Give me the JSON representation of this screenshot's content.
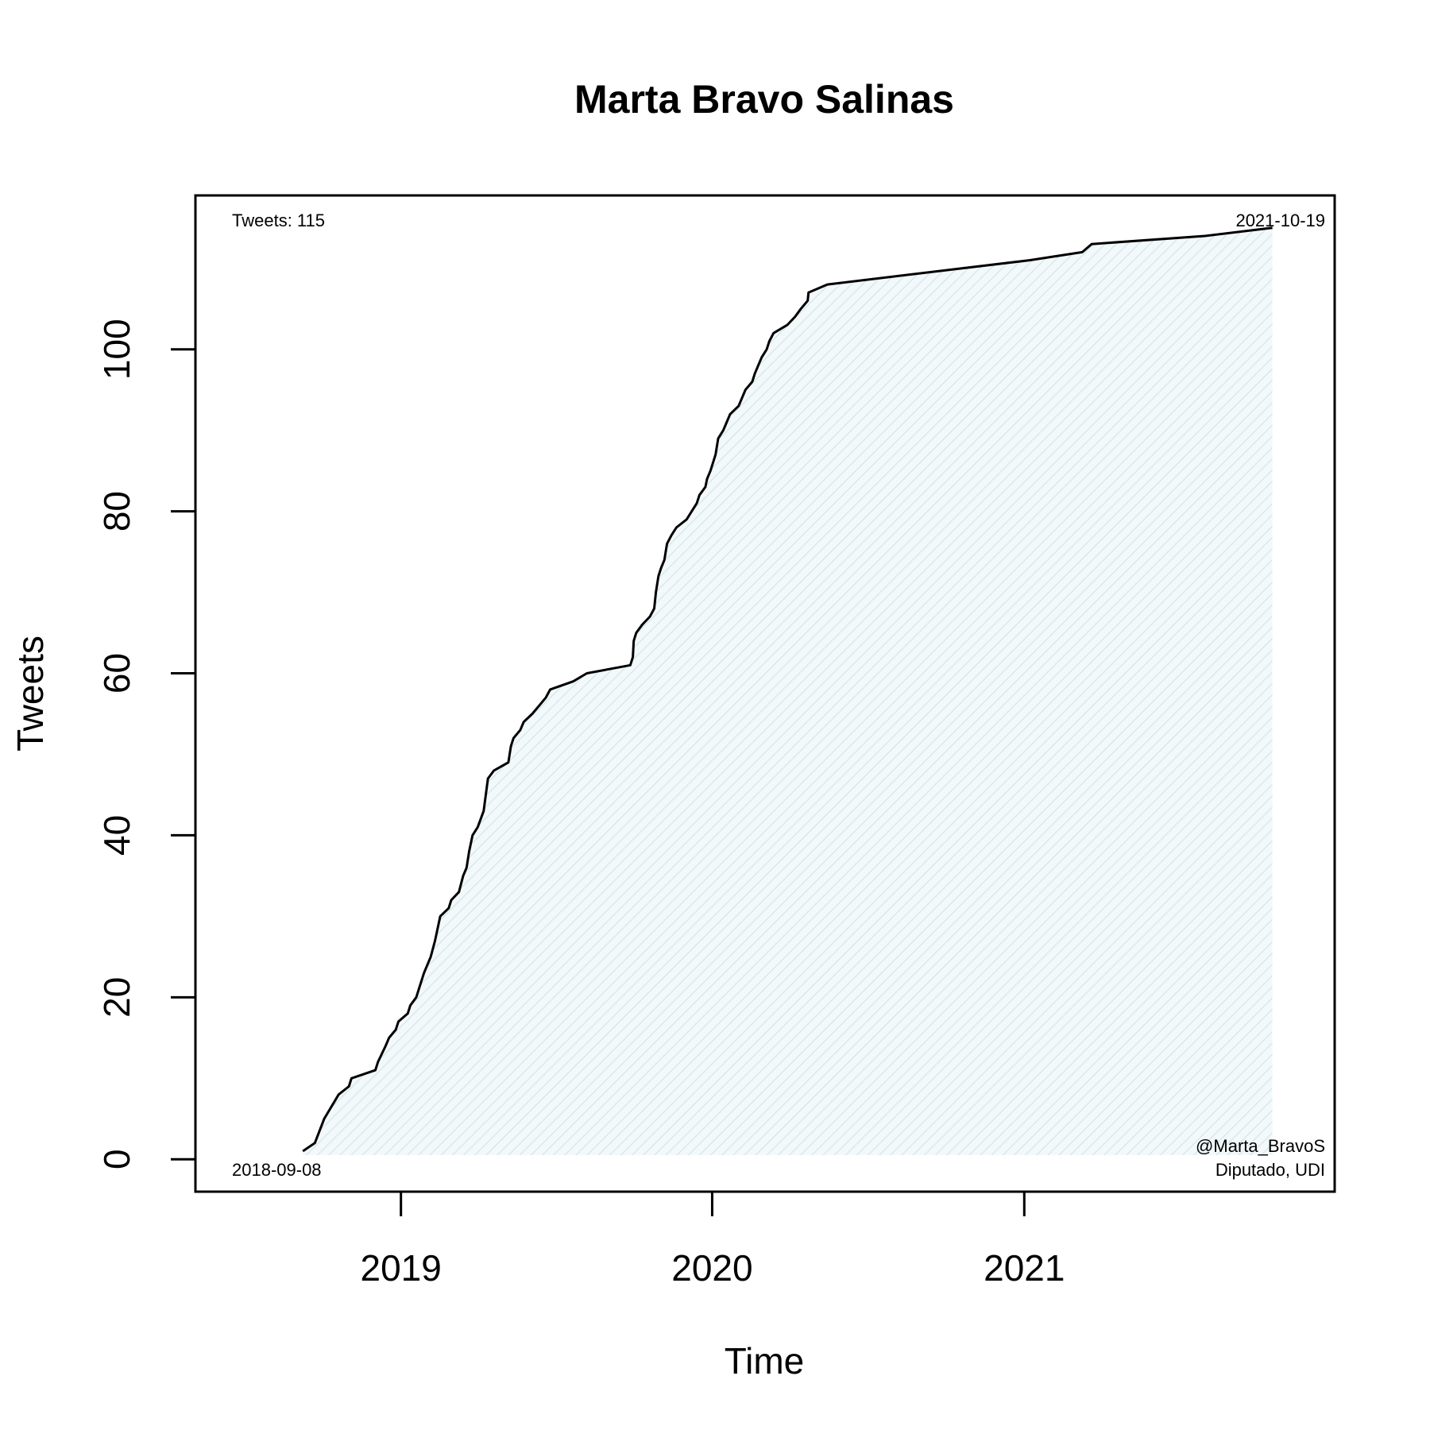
{
  "chart_data": {
    "type": "area",
    "title": "Marta Bravo Salinas",
    "xlabel": "Time",
    "ylabel": "Tweets",
    "xlim": [
      "2018-05-05",
      "2021-12-31"
    ],
    "ylim": [
      -4,
      119
    ],
    "x_ticks": [
      {
        "date": "2019-01-01",
        "label": "2019"
      },
      {
        "date": "2020-01-01",
        "label": "2020"
      },
      {
        "date": "2021-01-01",
        "label": "2021"
      }
    ],
    "y_ticks": [
      0,
      20,
      40,
      60,
      80,
      100
    ],
    "grid": false,
    "fill_color": "#e3eff2",
    "line_color": "#000000",
    "annotations": {
      "tweet_count": "Tweets: 115",
      "start_date": "2018-09-08",
      "end_date": "2021-10-19",
      "handle": "@Marta_BravoS",
      "affiliation": "Diputado, UDI"
    },
    "series": [
      {
        "points": [
          [
            "2018-09-08",
            1
          ],
          [
            "2018-09-22",
            2
          ],
          [
            "2018-10-03",
            5
          ],
          [
            "2018-10-20",
            8
          ],
          [
            "2018-11-01",
            9
          ],
          [
            "2018-11-04",
            10
          ],
          [
            "2018-12-02",
            11
          ],
          [
            "2018-12-05",
            12
          ],
          [
            "2018-12-14",
            14
          ],
          [
            "2018-12-18",
            15
          ],
          [
            "2018-12-26",
            16
          ],
          [
            "2018-12-29",
            17
          ],
          [
            "2019-01-09",
            18
          ],
          [
            "2019-01-12",
            19
          ],
          [
            "2019-01-19",
            20
          ],
          [
            "2019-01-22",
            21
          ],
          [
            "2019-01-28",
            23
          ],
          [
            "2019-02-05",
            25
          ],
          [
            "2019-02-10",
            27
          ],
          [
            "2019-02-16",
            30
          ],
          [
            "2019-02-26",
            31
          ],
          [
            "2019-03-01",
            32
          ],
          [
            "2019-03-10",
            33
          ],
          [
            "2019-03-15",
            35
          ],
          [
            "2019-03-19",
            36
          ],
          [
            "2019-03-22",
            38
          ],
          [
            "2019-03-26",
            40
          ],
          [
            "2019-04-01",
            41
          ],
          [
            "2019-04-08",
            43
          ],
          [
            "2019-04-13",
            47
          ],
          [
            "2019-04-20",
            48
          ],
          [
            "2019-05-07",
            49
          ],
          [
            "2019-05-10",
            51
          ],
          [
            "2019-05-13",
            52
          ],
          [
            "2019-05-21",
            53
          ],
          [
            "2019-05-25",
            54
          ],
          [
            "2019-06-04",
            55
          ],
          [
            "2019-06-12",
            56
          ],
          [
            "2019-06-20",
            57
          ],
          [
            "2019-06-25",
            58
          ],
          [
            "2019-07-22",
            59
          ],
          [
            "2019-08-07",
            60
          ],
          [
            "2019-09-27",
            61
          ],
          [
            "2019-09-30",
            62
          ],
          [
            "2019-10-01",
            64
          ],
          [
            "2019-10-04",
            65
          ],
          [
            "2019-10-11",
            66
          ],
          [
            "2019-10-20",
            67
          ],
          [
            "2019-10-25",
            68
          ],
          [
            "2019-10-27",
            70
          ],
          [
            "2019-10-30",
            72
          ],
          [
            "2019-11-02",
            73
          ],
          [
            "2019-11-06",
            74
          ],
          [
            "2019-11-09",
            76
          ],
          [
            "2019-11-14",
            77
          ],
          [
            "2019-11-20",
            78
          ],
          [
            "2019-12-02",
            79
          ],
          [
            "2019-12-08",
            80
          ],
          [
            "2019-12-14",
            81
          ],
          [
            "2019-12-17",
            82
          ],
          [
            "2019-12-24",
            83
          ],
          [
            "2019-12-26",
            84
          ],
          [
            "2019-12-30",
            85
          ],
          [
            "2020-01-05",
            87
          ],
          [
            "2020-01-08",
            89
          ],
          [
            "2020-01-14",
            90
          ],
          [
            "2020-01-18",
            91
          ],
          [
            "2020-01-22",
            92
          ],
          [
            "2020-02-01",
            93
          ],
          [
            "2020-02-05",
            94
          ],
          [
            "2020-02-09",
            95
          ],
          [
            "2020-02-17",
            96
          ],
          [
            "2020-02-20",
            97
          ],
          [
            "2020-02-24",
            98
          ],
          [
            "2020-02-28",
            99
          ],
          [
            "2020-03-05",
            100
          ],
          [
            "2020-03-08",
            101
          ],
          [
            "2020-03-13",
            102
          ],
          [
            "2020-03-29",
            103
          ],
          [
            "2020-04-07",
            104
          ],
          [
            "2020-04-14",
            105
          ],
          [
            "2020-04-22",
            106
          ],
          [
            "2020-04-23",
            107
          ],
          [
            "2020-05-15",
            108
          ],
          [
            "2021-01-07",
            111
          ],
          [
            "2021-03-10",
            112
          ],
          [
            "2021-03-21",
            113
          ],
          [
            "2021-08-01",
            114
          ],
          [
            "2021-10-19",
            115
          ]
        ]
      }
    ]
  }
}
